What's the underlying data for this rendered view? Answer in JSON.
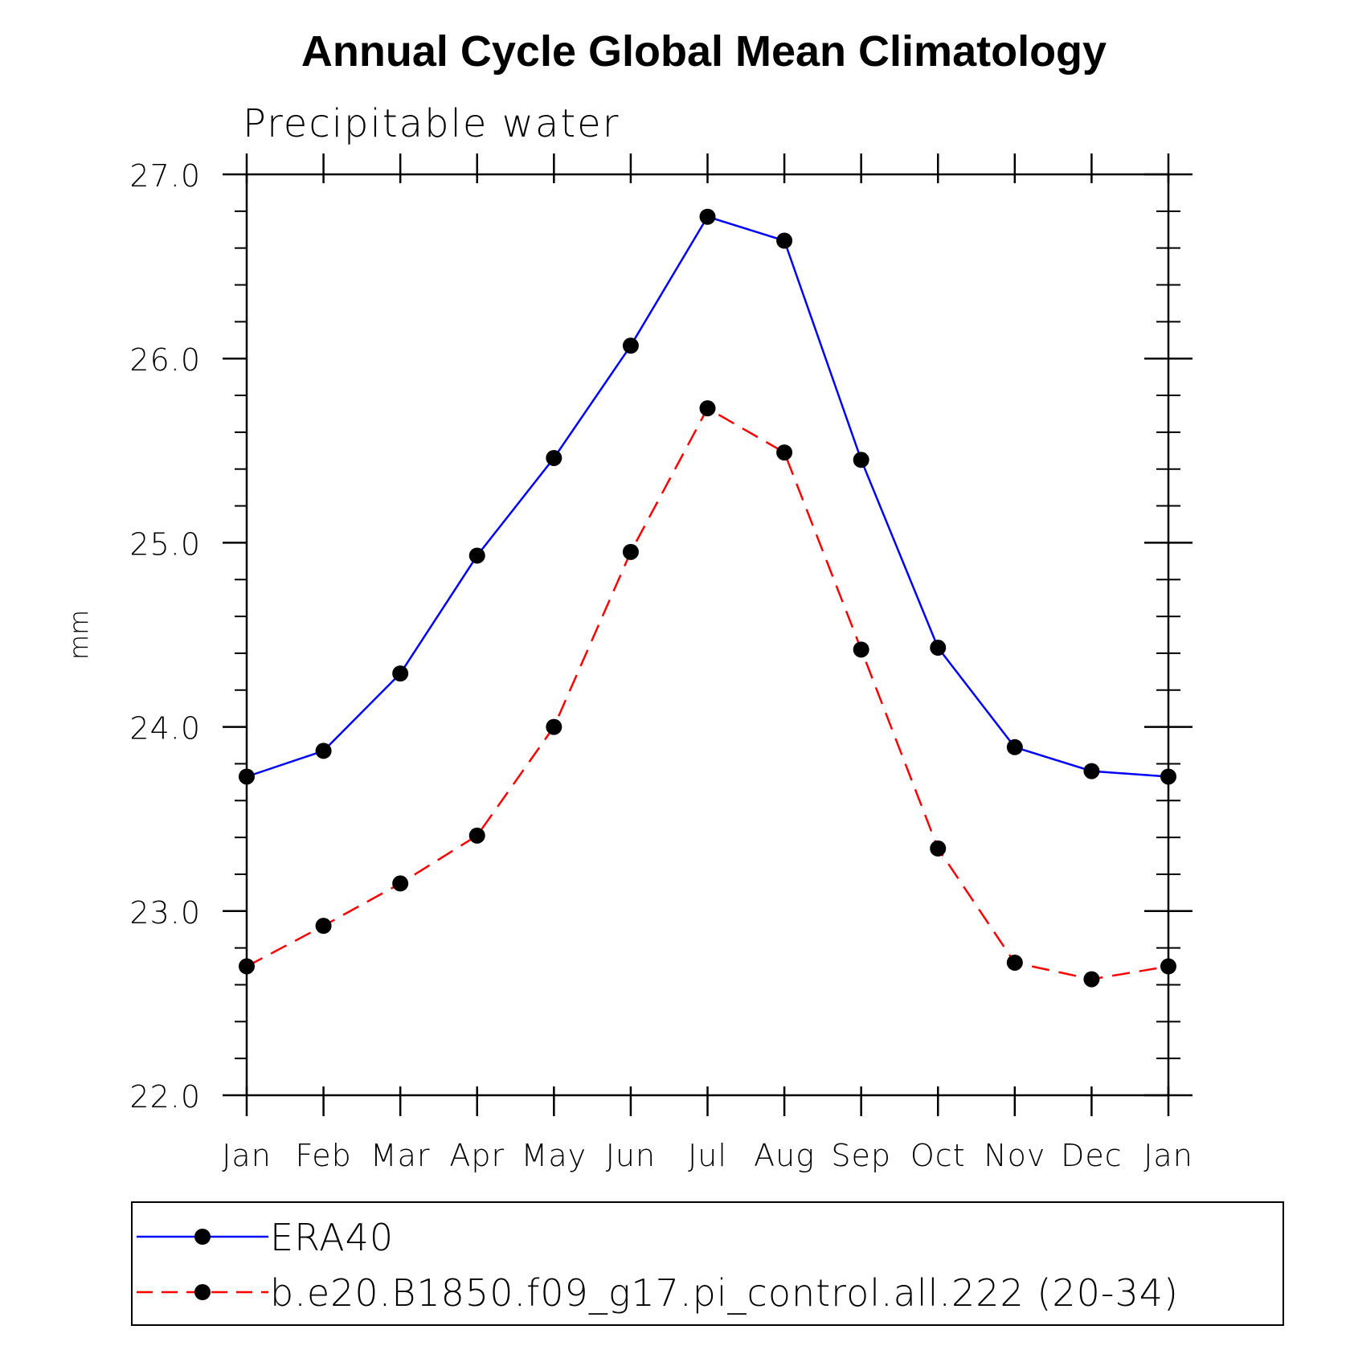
{
  "chart_data": {
    "type": "line",
    "title": "Annual Cycle Global Mean Climatology",
    "subtitle": "Precipitable water",
    "xlabel": "",
    "ylabel": "mm",
    "categories": [
      "Jan",
      "Feb",
      "Mar",
      "Apr",
      "May",
      "Jun",
      "Jul",
      "Aug",
      "Sep",
      "Oct",
      "Nov",
      "Dec",
      "Jan"
    ],
    "ylim": [
      22.0,
      27.0
    ],
    "yticks": [
      "22.0",
      "23.0",
      "24.0",
      "25.0",
      "26.0",
      "27.0"
    ],
    "grid": false,
    "legend_position": "bottom",
    "series": [
      {
        "name": "ERA40",
        "color": "#0000ff",
        "line_style": "solid",
        "marker": "filled-circle",
        "values": [
          23.73,
          23.87,
          24.29,
          24.93,
          25.46,
          26.07,
          26.77,
          26.64,
          25.45,
          24.43,
          23.89,
          23.76,
          23.73
        ]
      },
      {
        "name": "b.e20.B1850.f09_g17.pi_control.all.222 (20-34)",
        "color": "#ff0000",
        "line_style": "dashed",
        "marker": "filled-circle",
        "values": [
          22.7,
          22.92,
          23.15,
          23.41,
          24.0,
          24.95,
          25.73,
          25.49,
          24.42,
          23.34,
          22.72,
          22.63,
          22.7
        ]
      }
    ]
  }
}
